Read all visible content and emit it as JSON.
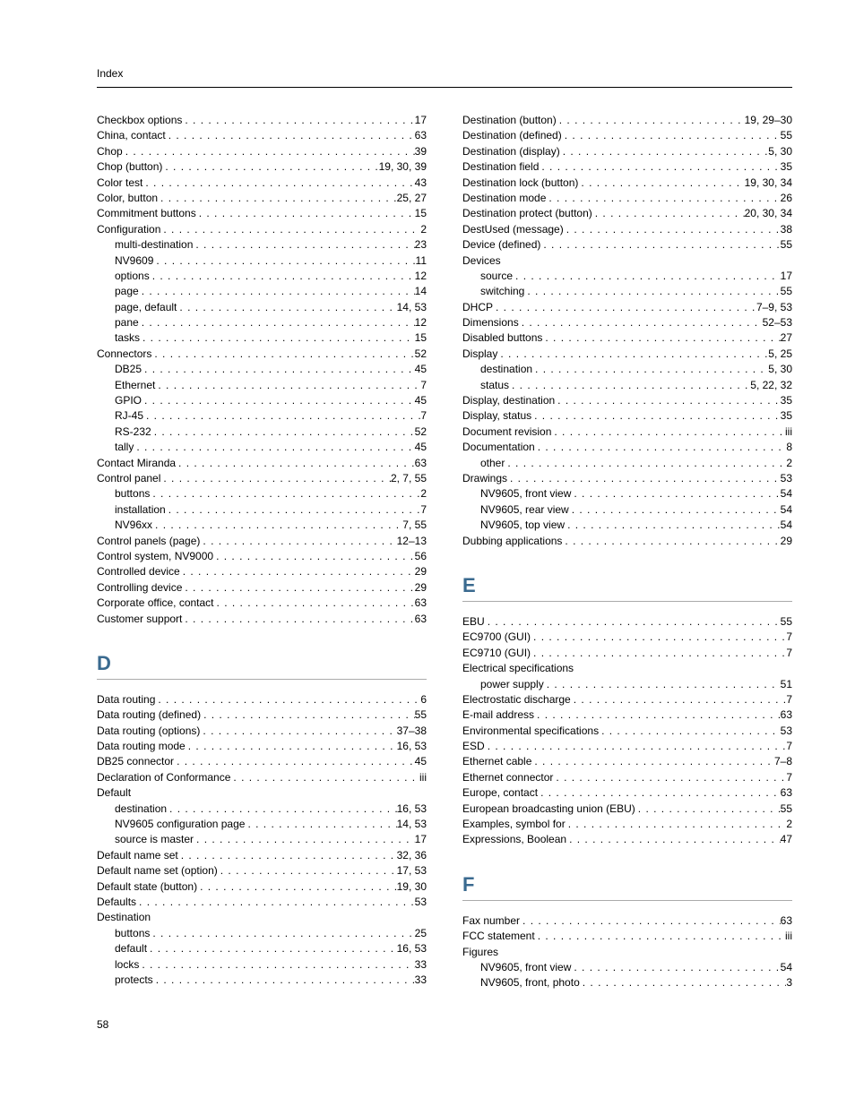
{
  "header": "Index",
  "page_number": "58",
  "left": {
    "continuation": [
      {
        "label": "Checkbox options",
        "pages": "17"
      },
      {
        "label": "China, contact",
        "pages": "63"
      },
      {
        "label": "Chop",
        "pages": "39"
      },
      {
        "label": "Chop (button)",
        "pages": "19, 30, 39"
      },
      {
        "label": "Color test",
        "pages": "43"
      },
      {
        "label": "Color, button",
        "pages": "25, 27"
      },
      {
        "label": "Commitment buttons",
        "pages": "15"
      },
      {
        "label": "Configuration",
        "pages": "2"
      },
      {
        "label": "multi-destination",
        "pages": "23",
        "sub": true
      },
      {
        "label": "NV9609",
        "pages": "11",
        "sub": true
      },
      {
        "label": "options",
        "pages": "12",
        "sub": true
      },
      {
        "label": "page",
        "pages": "14",
        "sub": true
      },
      {
        "label": "page, default",
        "pages": "14, 53",
        "sub": true
      },
      {
        "label": "pane",
        "pages": "12",
        "sub": true
      },
      {
        "label": "tasks",
        "pages": "15",
        "sub": true
      },
      {
        "label": "Connectors",
        "pages": "52"
      },
      {
        "label": "DB25",
        "pages": "45",
        "sub": true
      },
      {
        "label": "Ethernet",
        "pages": "7",
        "sub": true
      },
      {
        "label": "GPIO",
        "pages": "45",
        "sub": true
      },
      {
        "label": "RJ-45",
        "pages": "7",
        "sub": true
      },
      {
        "label": "RS-232",
        "pages": "52",
        "sub": true
      },
      {
        "label": "tally",
        "pages": "45",
        "sub": true
      },
      {
        "label": "Contact Miranda",
        "pages": "63"
      },
      {
        "label": "Control panel",
        "pages": "2, 7, 55"
      },
      {
        "label": "buttons",
        "pages": "2",
        "sub": true
      },
      {
        "label": "installation",
        "pages": "7",
        "sub": true
      },
      {
        "label": "NV96xx",
        "pages": "7, 55",
        "sub": true
      },
      {
        "label": "Control panels (page)",
        "pages": "12–13"
      },
      {
        "label": "Control system, NV9000",
        "pages": "56"
      },
      {
        "label": "Controlled device",
        "pages": "29"
      },
      {
        "label": "Controlling device",
        "pages": "29"
      },
      {
        "label": "Corporate office, contact",
        "pages": "63"
      },
      {
        "label": "Customer support",
        "pages": "63"
      }
    ],
    "D": [
      {
        "label": "Data routing",
        "pages": "6"
      },
      {
        "label": "Data routing (defined)",
        "pages": "55"
      },
      {
        "label": "Data routing (options)",
        "pages": "37–38"
      },
      {
        "label": "Data routing mode",
        "pages": "16, 53"
      },
      {
        "label": "DB25 connector",
        "pages": "45"
      },
      {
        "label": "Declaration of Conformance",
        "pages": "iii"
      },
      {
        "label": "Default",
        "pages": "",
        "noleader": true
      },
      {
        "label": "destination",
        "pages": "16, 53",
        "sub": true
      },
      {
        "label": "NV9605 configuration page",
        "pages": "14, 53",
        "sub": true
      },
      {
        "label": "source is master",
        "pages": "17",
        "sub": true
      },
      {
        "label": "Default name set",
        "pages": "32, 36"
      },
      {
        "label": "Default name set (option)",
        "pages": "17, 53"
      },
      {
        "label": "Default state (button)",
        "pages": "19, 30"
      },
      {
        "label": "Defaults",
        "pages": "53"
      },
      {
        "label": "Destination",
        "pages": "",
        "noleader": true
      },
      {
        "label": "buttons",
        "pages": "25",
        "sub": true
      },
      {
        "label": "default",
        "pages": "16, 53",
        "sub": true
      },
      {
        "label": "locks",
        "pages": "33",
        "sub": true
      },
      {
        "label": "protects",
        "pages": "33",
        "sub": true
      }
    ]
  },
  "right": {
    "continuation": [
      {
        "label": "Destination (button)",
        "pages": "19, 29–30"
      },
      {
        "label": "Destination (defined)",
        "pages": "55"
      },
      {
        "label": "Destination (display)",
        "pages": "5, 30"
      },
      {
        "label": "Destination field",
        "pages": "35"
      },
      {
        "label": "Destination lock (button)",
        "pages": "19, 30, 34"
      },
      {
        "label": "Destination mode",
        "pages": "26"
      },
      {
        "label": "Destination protect (button)",
        "pages": "20, 30, 34"
      },
      {
        "label": "DestUsed (message)",
        "pages": "38"
      },
      {
        "label": "Device (defined)",
        "pages": "55"
      },
      {
        "label": "Devices",
        "pages": "",
        "noleader": true
      },
      {
        "label": "source",
        "pages": "17",
        "sub": true
      },
      {
        "label": "switching",
        "pages": "55",
        "sub": true
      },
      {
        "label": "DHCP",
        "pages": "7–9, 53"
      },
      {
        "label": "Dimensions",
        "pages": "52–53"
      },
      {
        "label": "Disabled buttons",
        "pages": "27"
      },
      {
        "label": "Display",
        "pages": "5, 25"
      },
      {
        "label": "destination",
        "pages": "5, 30",
        "sub": true
      },
      {
        "label": "status",
        "pages": "5, 22, 32",
        "sub": true
      },
      {
        "label": "Display, destination",
        "pages": "35"
      },
      {
        "label": "Display, status",
        "pages": "35"
      },
      {
        "label": "Document revision",
        "pages": "iii"
      },
      {
        "label": "Documentation",
        "pages": "8"
      },
      {
        "label": "other",
        "pages": "2",
        "sub": true
      },
      {
        "label": "Drawings",
        "pages": "53"
      },
      {
        "label": "NV9605, front view",
        "pages": "54",
        "sub": true
      },
      {
        "label": "NV9605, rear view",
        "pages": "54",
        "sub": true
      },
      {
        "label": "NV9605, top view",
        "pages": "54",
        "sub": true
      },
      {
        "label": "Dubbing applications",
        "pages": "29"
      }
    ],
    "E": [
      {
        "label": "EBU",
        "pages": "55"
      },
      {
        "label": "EC9700 (GUI)",
        "pages": "7"
      },
      {
        "label": "EC9710 (GUI)",
        "pages": "7"
      },
      {
        "label": "Electrical specifications",
        "pages": "",
        "noleader": true
      },
      {
        "label": "power supply",
        "pages": "51",
        "sub": true
      },
      {
        "label": "Electrostatic discharge",
        "pages": "7"
      },
      {
        "label": "E-mail address",
        "pages": "63"
      },
      {
        "label": "Environmental specifications",
        "pages": "53"
      },
      {
        "label": "ESD",
        "pages": "7"
      },
      {
        "label": "Ethernet cable",
        "pages": "7–8"
      },
      {
        "label": "Ethernet connector",
        "pages": "7"
      },
      {
        "label": "Europe, contact",
        "pages": "63"
      },
      {
        "label": "European broadcasting union (EBU)",
        "pages": "55"
      },
      {
        "label": "Examples, symbol for",
        "pages": "2"
      },
      {
        "label": "Expressions, Boolean",
        "pages": "47"
      }
    ],
    "F": [
      {
        "label": "Fax number",
        "pages": "63"
      },
      {
        "label": "FCC statement",
        "pages": "iii"
      },
      {
        "label": "Figures",
        "pages": "",
        "noleader": true
      },
      {
        "label": "NV9605, front view",
        "pages": "54",
        "sub": true
      },
      {
        "label": "NV9605, front, photo",
        "pages": "3",
        "sub": true
      }
    ]
  }
}
